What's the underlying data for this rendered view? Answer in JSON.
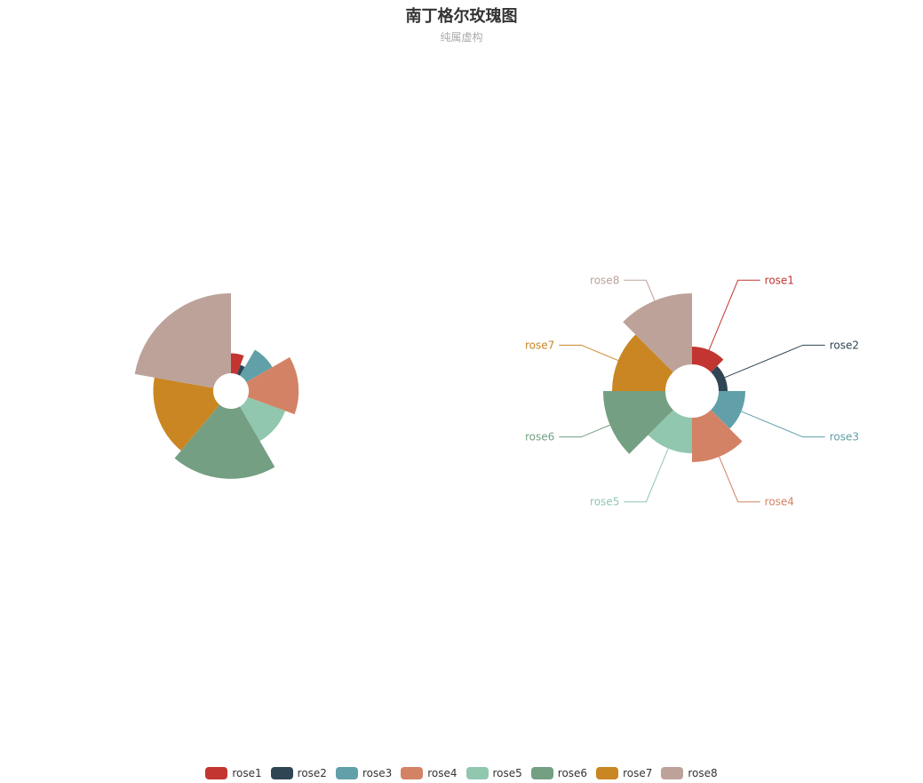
{
  "title": "南丁格尔玫瑰图",
  "subtitle": "纯属虚构",
  "chart_data": {
    "type": "pie",
    "title": "南丁格尔玫瑰图",
    "subtitle": "纯属虚构",
    "legend": [
      "rose1",
      "rose2",
      "rose3",
      "rose4",
      "rose5",
      "rose6",
      "rose7",
      "rose8"
    ],
    "legend_position": "bottom-center",
    "charts": [
      {
        "roseType": "radius",
        "labels_visible": false,
        "data": [
          {
            "name": "rose1",
            "value": 10
          },
          {
            "name": "rose2",
            "value": 5
          },
          {
            "name": "rose3",
            "value": 15
          },
          {
            "name": "rose4",
            "value": 25
          },
          {
            "name": "rose5",
            "value": 20
          },
          {
            "name": "rose6",
            "value": 35
          },
          {
            "name": "rose7",
            "value": 30
          },
          {
            "name": "rose8",
            "value": 40
          }
        ]
      },
      {
        "roseType": "area",
        "labels_visible": true,
        "data": [
          {
            "name": "rose1",
            "value": 10
          },
          {
            "name": "rose2",
            "value": 5
          },
          {
            "name": "rose3",
            "value": 15
          },
          {
            "name": "rose4",
            "value": 25
          },
          {
            "name": "rose5",
            "value": 20
          },
          {
            "name": "rose6",
            "value": 35
          },
          {
            "name": "rose7",
            "value": 30
          },
          {
            "name": "rose8",
            "value": 40
          }
        ]
      }
    ]
  },
  "colors": [
    "#c23531",
    "#2f4554",
    "#61a0a8",
    "#d48265",
    "#91c7ae",
    "#749f83",
    "#ca8622",
    "#bda29a"
  ]
}
